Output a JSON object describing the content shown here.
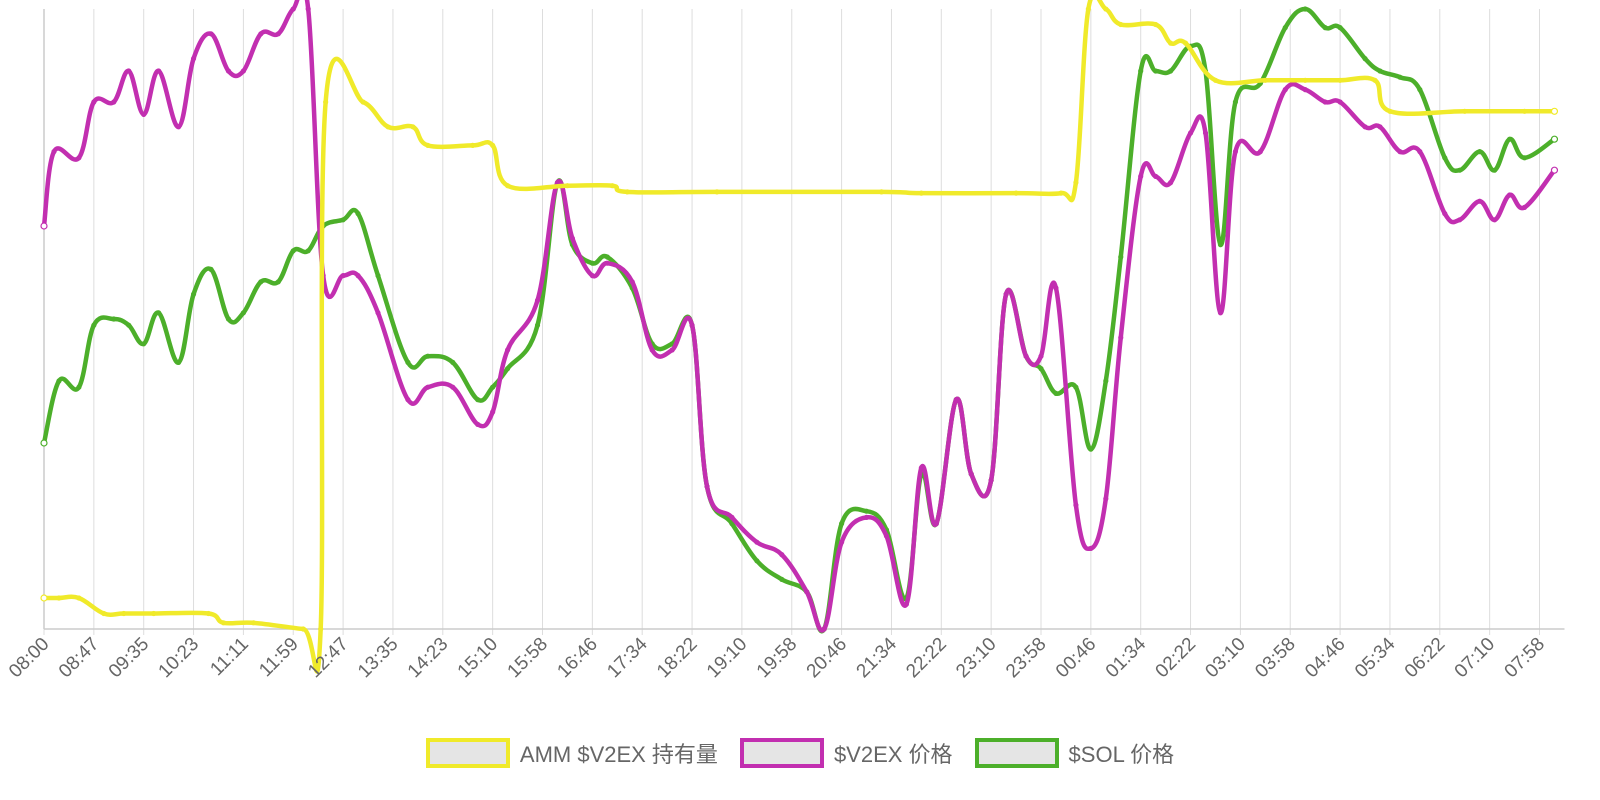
{
  "chart_data": {
    "type": "line",
    "categories": [
      "08:00",
      "08:47",
      "09:35",
      "10:23",
      "11:11",
      "11:59",
      "12:47",
      "13:35",
      "14:23",
      "15:10",
      "15:58",
      "16:46",
      "17:34",
      "18:22",
      "19:10",
      "19:58",
      "20:46",
      "21:34",
      "22:22",
      "23:10",
      "23:58",
      "00:46",
      "01:34",
      "02:22",
      "03:10",
      "03:58",
      "04:46",
      "05:34",
      "06:22",
      "07:10",
      "07:58"
    ],
    "ylim": [
      0,
      100
    ],
    "grid": "vertical",
    "legend_position": "bottom",
    "series": [
      {
        "name": "AMM $V2EX 持有量",
        "color": "#f0ea2a",
        "points": [
          [
            0,
            5
          ],
          [
            0.3,
            5
          ],
          [
            0.7,
            5
          ],
          [
            1.2,
            2.5
          ],
          [
            1.6,
            2.5
          ],
          [
            2.2,
            2.5
          ],
          [
            3.3,
            2.5
          ],
          [
            3.6,
            1
          ],
          [
            4.2,
            1
          ],
          [
            5.2,
            0
          ],
          [
            5.55,
            0
          ],
          [
            5.65,
            85
          ],
          [
            6.4,
            85
          ],
          [
            6.9,
            81
          ],
          [
            7.4,
            81
          ],
          [
            7.7,
            78
          ],
          [
            8.6,
            78
          ],
          [
            9.0,
            78
          ],
          [
            9.3,
            71.5
          ],
          [
            10.5,
            71.5
          ],
          [
            11.4,
            71.5
          ],
          [
            11.7,
            70.5
          ],
          [
            13.5,
            70.5
          ],
          [
            16.8,
            70.5
          ],
          [
            17.6,
            70.3
          ],
          [
            19.5,
            70.3
          ],
          [
            20.4,
            70.3
          ],
          [
            20.7,
            72
          ],
          [
            20.95,
            100
          ],
          [
            21.3,
            100
          ],
          [
            21.6,
            97.5
          ],
          [
            22.3,
            97.5
          ],
          [
            22.6,
            94.5
          ],
          [
            22.9,
            94.5
          ],
          [
            23.5,
            88.5
          ],
          [
            24.5,
            88.5
          ],
          [
            25.3,
            88.5
          ],
          [
            26.0,
            88.5
          ],
          [
            26.7,
            88.5
          ],
          [
            27.0,
            83.5
          ],
          [
            28.5,
            83.5
          ],
          [
            29.7,
            83.5
          ],
          [
            30.3,
            83.5
          ]
        ]
      },
      {
        "name": "$V2EX 价格",
        "color": "#c22fb0",
        "points": [
          [
            0,
            65
          ],
          [
            0.2,
            77
          ],
          [
            0.7,
            76
          ],
          [
            1.0,
            85
          ],
          [
            1.4,
            85
          ],
          [
            1.7,
            90
          ],
          [
            2.0,
            83
          ],
          [
            2.3,
            90
          ],
          [
            2.7,
            81
          ],
          [
            3.0,
            92
          ],
          [
            3.35,
            96
          ],
          [
            3.7,
            90
          ],
          [
            4.0,
            90
          ],
          [
            4.35,
            96
          ],
          [
            4.7,
            96
          ],
          [
            5.0,
            100
          ],
          [
            5.3,
            100
          ],
          [
            5.6,
            57
          ],
          [
            6.0,
            57
          ],
          [
            6.3,
            57
          ],
          [
            6.7,
            51
          ],
          [
            7.3,
            37
          ],
          [
            7.7,
            39
          ],
          [
            8.2,
            39
          ],
          [
            8.7,
            33
          ],
          [
            9.0,
            35
          ],
          [
            9.3,
            45
          ],
          [
            9.9,
            53
          ],
          [
            10.3,
            72
          ],
          [
            10.6,
            63
          ],
          [
            11.0,
            57
          ],
          [
            11.3,
            59
          ],
          [
            11.8,
            56
          ],
          [
            12.2,
            45
          ],
          [
            12.6,
            45
          ],
          [
            13.0,
            49
          ],
          [
            13.3,
            23
          ],
          [
            13.8,
            18
          ],
          [
            14.3,
            14
          ],
          [
            14.8,
            12
          ],
          [
            15.3,
            6
          ],
          [
            15.65,
            0
          ],
          [
            16.0,
            14
          ],
          [
            16.5,
            18
          ],
          [
            16.9,
            15
          ],
          [
            17.3,
            4
          ],
          [
            17.6,
            26
          ],
          [
            17.9,
            17
          ],
          [
            18.3,
            37
          ],
          [
            18.6,
            25
          ],
          [
            19.0,
            24
          ],
          [
            19.3,
            54
          ],
          [
            19.7,
            44
          ],
          [
            20.0,
            44
          ],
          [
            20.3,
            55
          ],
          [
            20.7,
            20
          ],
          [
            21.0,
            13
          ],
          [
            21.3,
            21
          ],
          [
            21.6,
            47
          ],
          [
            22.0,
            73
          ],
          [
            22.3,
            73
          ],
          [
            22.6,
            72
          ],
          [
            23.0,
            80
          ],
          [
            23.3,
            80
          ],
          [
            23.6,
            51
          ],
          [
            23.9,
            77
          ],
          [
            24.4,
            77
          ],
          [
            24.9,
            87
          ],
          [
            25.3,
            87
          ],
          [
            25.7,
            85
          ],
          [
            26.0,
            85
          ],
          [
            26.5,
            81
          ],
          [
            26.8,
            81
          ],
          [
            27.2,
            77
          ],
          [
            27.6,
            77
          ],
          [
            28.1,
            67
          ],
          [
            28.4,
            66
          ],
          [
            28.8,
            69
          ],
          [
            29.1,
            66
          ],
          [
            29.4,
            70
          ],
          [
            29.7,
            68
          ],
          [
            30.3,
            74
          ]
        ]
      },
      {
        "name": "$SOL 价格",
        "color": "#4caf2a",
        "points": [
          [
            0,
            30
          ],
          [
            0.3,
            40
          ],
          [
            0.7,
            39
          ],
          [
            1.0,
            49
          ],
          [
            1.4,
            50
          ],
          [
            1.7,
            49
          ],
          [
            2.0,
            46
          ],
          [
            2.3,
            51
          ],
          [
            2.7,
            43
          ],
          [
            3.0,
            54
          ],
          [
            3.35,
            58
          ],
          [
            3.7,
            50
          ],
          [
            4.0,
            51
          ],
          [
            4.35,
            56
          ],
          [
            4.7,
            56
          ],
          [
            5.0,
            61
          ],
          [
            5.3,
            61
          ],
          [
            5.6,
            65
          ],
          [
            6.0,
            66
          ],
          [
            6.3,
            67
          ],
          [
            6.7,
            57
          ],
          [
            7.3,
            43
          ],
          [
            7.7,
            44
          ],
          [
            8.2,
            43
          ],
          [
            8.7,
            37
          ],
          [
            9.0,
            39
          ],
          [
            9.3,
            42
          ],
          [
            9.9,
            49
          ],
          [
            10.3,
            72
          ],
          [
            10.6,
            62
          ],
          [
            11.0,
            59
          ],
          [
            11.3,
            60
          ],
          [
            11.8,
            55
          ],
          [
            12.2,
            46
          ],
          [
            12.6,
            46
          ],
          [
            13.0,
            49
          ],
          [
            13.3,
            23
          ],
          [
            13.8,
            17
          ],
          [
            14.3,
            11
          ],
          [
            14.8,
            8
          ],
          [
            15.3,
            6
          ],
          [
            15.65,
            0
          ],
          [
            16.0,
            17
          ],
          [
            16.5,
            19
          ],
          [
            16.9,
            16
          ],
          [
            17.3,
            5
          ],
          [
            17.6,
            25
          ],
          [
            17.9,
            17
          ],
          [
            18.3,
            37
          ],
          [
            18.6,
            25
          ],
          [
            19.0,
            24
          ],
          [
            19.3,
            54
          ],
          [
            19.7,
            44
          ],
          [
            20.0,
            42
          ],
          [
            20.3,
            38
          ],
          [
            20.7,
            39
          ],
          [
            21.0,
            29
          ],
          [
            21.3,
            40
          ],
          [
            21.6,
            60
          ],
          [
            22.0,
            90
          ],
          [
            22.3,
            90
          ],
          [
            22.6,
            90
          ],
          [
            23.0,
            94
          ],
          [
            23.3,
            90
          ],
          [
            23.6,
            62
          ],
          [
            23.9,
            85
          ],
          [
            24.4,
            88
          ],
          [
            24.9,
            97
          ],
          [
            25.3,
            100
          ],
          [
            25.7,
            97
          ],
          [
            26.0,
            97
          ],
          [
            26.5,
            92
          ],
          [
            26.8,
            90
          ],
          [
            27.2,
            89
          ],
          [
            27.6,
            87
          ],
          [
            28.1,
            76
          ],
          [
            28.4,
            74
          ],
          [
            28.8,
            77
          ],
          [
            29.1,
            74
          ],
          [
            29.4,
            79
          ],
          [
            29.7,
            76
          ],
          [
            30.3,
            79
          ]
        ]
      }
    ]
  }
}
